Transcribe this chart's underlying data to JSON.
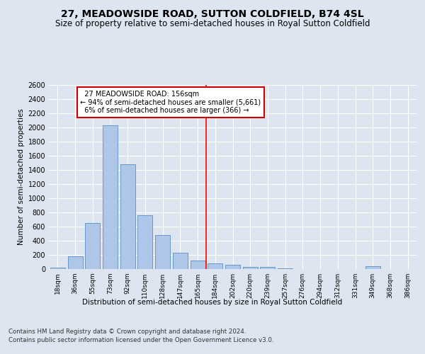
{
  "title": "27, MEADOWSIDE ROAD, SUTTON COLDFIELD, B74 4SL",
  "subtitle": "Size of property relative to semi-detached houses in Royal Sutton Coldfield",
  "xlabel_bottom": "Distribution of semi-detached houses by size in Royal Sutton Coldfield",
  "ylabel": "Number of semi-detached properties",
  "footer_line1": "Contains HM Land Registry data © Crown copyright and database right 2024.",
  "footer_line2": "Contains public sector information licensed under the Open Government Licence v3.0.",
  "bar_labels": [
    "18sqm",
    "36sqm",
    "55sqm",
    "73sqm",
    "92sqm",
    "110sqm",
    "128sqm",
    "147sqm",
    "165sqm",
    "184sqm",
    "202sqm",
    "220sqm",
    "239sqm",
    "257sqm",
    "276sqm",
    "294sqm",
    "312sqm",
    "331sqm",
    "349sqm",
    "368sqm",
    "386sqm"
  ],
  "bar_values": [
    20,
    180,
    650,
    2030,
    1480,
    765,
    480,
    235,
    120,
    80,
    60,
    35,
    30,
    15,
    0,
    0,
    0,
    0,
    40,
    0,
    0
  ],
  "bar_color": "#aec6e8",
  "bar_edge_color": "#5a8fc2",
  "property_label": "27 MEADOWSIDE ROAD: 156sqm",
  "pct_smaller": 94,
  "n_smaller": 5661,
  "pct_larger": 6,
  "n_larger": 366,
  "vline_x_index": 8.5,
  "annotation_box_color": "#ffffff",
  "annotation_box_edge": "#cc0000",
  "ylim": [
    0,
    2600
  ],
  "yticks": [
    0,
    200,
    400,
    600,
    800,
    1000,
    1200,
    1400,
    1600,
    1800,
    2000,
    2200,
    2400,
    2600
  ],
  "background_color": "#dde5f0",
  "plot_background": "#dde5f0",
  "grid_color": "#ffffff",
  "title_fontsize": 10,
  "subtitle_fontsize": 8.5
}
